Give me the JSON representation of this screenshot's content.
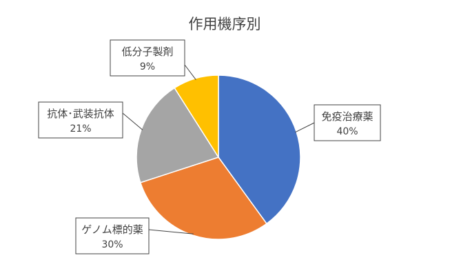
{
  "chart_data": {
    "type": "pie",
    "title": "作用機序別",
    "categories": [
      "免疫治療薬",
      "ゲノム標的薬",
      "抗体･武装抗体",
      "低分子製剤"
    ],
    "values": [
      40,
      30,
      21,
      9
    ],
    "value_labels": [
      "40%",
      "30%",
      "21%",
      "9%"
    ],
    "colors": [
      "#4472C4",
      "#ED7D31",
      "#A5A5A5",
      "#FFC000"
    ],
    "start_angle_deg": 0,
    "direction": "clockwise",
    "legend": "none",
    "data_labels": "callouts"
  }
}
